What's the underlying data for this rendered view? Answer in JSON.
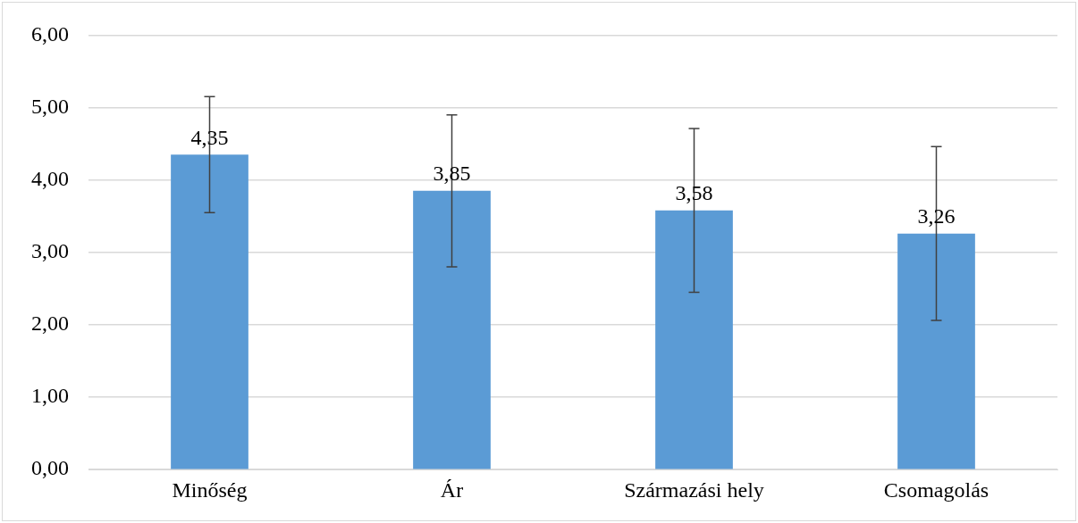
{
  "chart_data": {
    "type": "bar",
    "categories": [
      "Minőség",
      "Ár",
      "Származási hely",
      "Csomagolás"
    ],
    "values": [
      4.35,
      3.85,
      3.58,
      3.26
    ],
    "errors": [
      0.8,
      1.05,
      1.13,
      1.2
    ],
    "value_labels": [
      "4,35",
      "3,85",
      "3,58",
      "3,26"
    ],
    "color": "#5b9bd5",
    "ylim": [
      0,
      6
    ],
    "yticks": [
      {
        "value": 0,
        "label": "0,00"
      },
      {
        "value": 1,
        "label": "1,00"
      },
      {
        "value": 2,
        "label": "2,00"
      },
      {
        "value": 3,
        "label": "3,00"
      },
      {
        "value": 4,
        "label": "4,00"
      },
      {
        "value": 5,
        "label": "5,00"
      },
      {
        "value": 6,
        "label": "6,00"
      }
    ],
    "grid": "y",
    "legend": false
  }
}
